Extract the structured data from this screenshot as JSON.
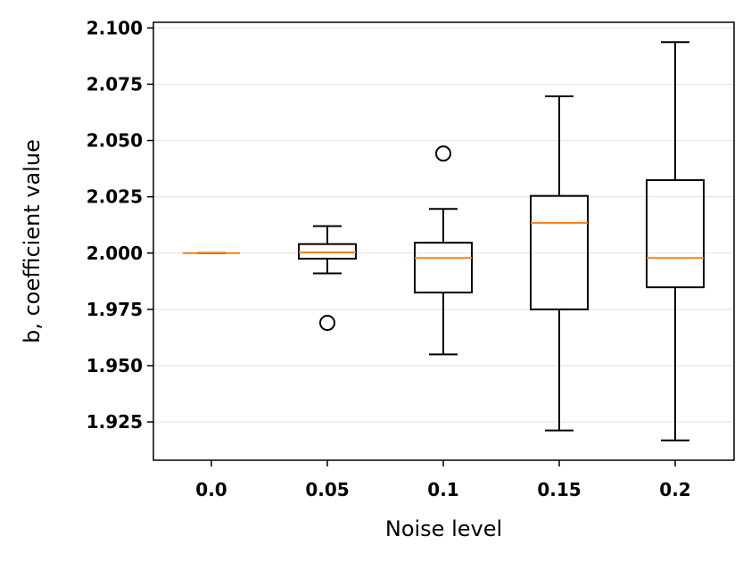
{
  "chart_data": {
    "type": "box",
    "categories": [
      "0.0",
      "0.05",
      "0.1",
      "0.15",
      "0.2"
    ],
    "xlabel": "Noise level",
    "ylabel": "b, coefficient value",
    "ylim": [
      1.908,
      2.1025
    ],
    "yticks": [
      "1.925",
      "1.950",
      "1.975",
      "2.000",
      "2.025",
      "2.050",
      "2.075",
      "2.100"
    ],
    "grid": "horizontal",
    "boxes": [
      {
        "category": "0.0",
        "whisker_low": 2.0,
        "q1": 2.0,
        "median": 2.0,
        "q3": 2.0,
        "whisker_high": 2.0,
        "outliers": []
      },
      {
        "category": "0.05",
        "whisker_low": 1.991,
        "q1": 1.9975,
        "median": 2.0003,
        "q3": 2.004,
        "whisker_high": 2.012,
        "outliers": [
          1.969
        ]
      },
      {
        "category": "0.1",
        "whisker_low": 1.955,
        "q1": 1.9825,
        "median": 1.9978,
        "q3": 2.0046,
        "whisker_high": 2.0196,
        "outliers": [
          2.0442
        ]
      },
      {
        "category": "0.15",
        "whisker_low": 1.9212,
        "q1": 1.975,
        "median": 2.0134,
        "q3": 2.0254,
        "whisker_high": 2.0696,
        "outliers": []
      },
      {
        "category": "0.2",
        "whisker_low": 1.9168,
        "q1": 1.9848,
        "median": 1.9978,
        "q3": 2.0324,
        "whisker_high": 2.0937,
        "outliers": []
      }
    ],
    "colors": {
      "median": "#ff7f0e",
      "box": "#000000",
      "grid": "#e6e6e6"
    }
  }
}
